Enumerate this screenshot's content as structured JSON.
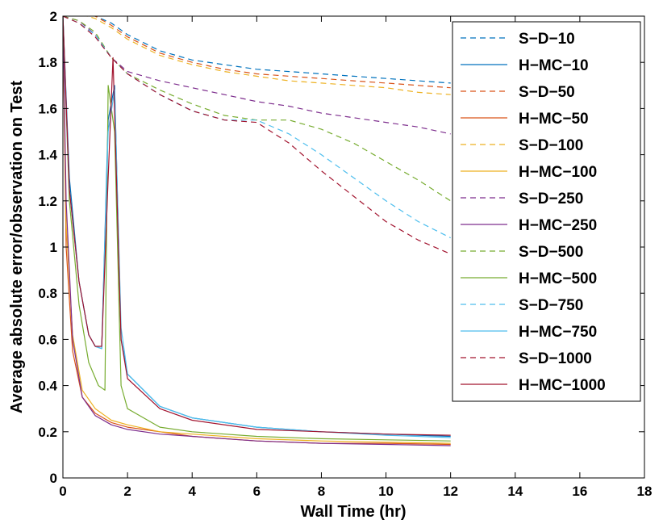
{
  "chart_data": {
    "type": "line",
    "title": "",
    "xlabel": "Wall Time (hr)",
    "ylabel": "Average absolute error/observation on Test",
    "xlim": [
      0,
      18
    ],
    "ylim": [
      0,
      2
    ],
    "xticks": [
      0,
      2,
      4,
      6,
      8,
      10,
      12,
      14,
      16,
      18
    ],
    "yticks": [
      0,
      0.2,
      0.4,
      0.6,
      0.8,
      1,
      1.2,
      1.4,
      1.6,
      1.8,
      2
    ],
    "xtick_labels": [
      "0",
      "2",
      "4",
      "6",
      "8",
      "10",
      "12",
      "14",
      "16",
      "18"
    ],
    "ytick_labels": [
      "0",
      "0.2",
      "0.4",
      "0.6",
      "0.8",
      "1",
      "1.2",
      "1.4",
      "1.6",
      "1.8",
      "2"
    ],
    "grid": false,
    "legend_position": "top-right",
    "series": [
      {
        "name": "S−D−10",
        "style": "dashed",
        "color": "#0072bd",
        "x": [
          0,
          0.5,
          1,
          1.5,
          2,
          3,
          4,
          5,
          6,
          7,
          8,
          9,
          10,
          11,
          12
        ],
        "y": [
          2.01,
          2.01,
          2.0,
          1.97,
          1.92,
          1.85,
          1.81,
          1.79,
          1.77,
          1.76,
          1.75,
          1.74,
          1.73,
          1.72,
          1.71
        ]
      },
      {
        "name": "H−MC−10",
        "style": "solid",
        "color": "#0072bd",
        "x": [
          0,
          0.2,
          0.5,
          0.8,
          1,
          1.2,
          1.4,
          1.6,
          1.8,
          2,
          3,
          4,
          6,
          8,
          10,
          12
        ],
        "y": [
          2.0,
          1.3,
          0.85,
          0.62,
          0.57,
          0.56,
          1.55,
          1.7,
          0.6,
          0.45,
          0.31,
          0.26,
          0.22,
          0.2,
          0.19,
          0.18
        ]
      },
      {
        "name": "S−D−50",
        "style": "dashed",
        "color": "#d95319",
        "x": [
          0,
          0.5,
          1,
          1.5,
          2,
          3,
          4,
          5,
          6,
          7,
          8,
          9,
          10,
          11,
          12
        ],
        "y": [
          2.01,
          2.01,
          2.0,
          1.96,
          1.91,
          1.84,
          1.8,
          1.77,
          1.75,
          1.74,
          1.73,
          1.72,
          1.71,
          1.7,
          1.69
        ]
      },
      {
        "name": "H−MC−50",
        "style": "solid",
        "color": "#d95319",
        "x": [
          0,
          0.1,
          0.3,
          0.6,
          1,
          1.5,
          2,
          3,
          4,
          6,
          8,
          10,
          12
        ],
        "y": [
          2.0,
          1.0,
          0.55,
          0.35,
          0.28,
          0.24,
          0.22,
          0.2,
          0.18,
          0.16,
          0.15,
          0.15,
          0.145
        ]
      },
      {
        "name": "S−D−100",
        "style": "dashed",
        "color": "#edb120",
        "x": [
          0,
          0.5,
          1,
          1.5,
          2,
          3,
          4,
          5,
          6,
          7,
          8,
          9,
          10,
          11,
          12
        ],
        "y": [
          2.01,
          2.01,
          1.99,
          1.95,
          1.9,
          1.83,
          1.79,
          1.76,
          1.74,
          1.72,
          1.71,
          1.7,
          1.69,
          1.67,
          1.66
        ]
      },
      {
        "name": "H−MC−100",
        "style": "solid",
        "color": "#edb120",
        "x": [
          0,
          0.1,
          0.3,
          0.6,
          1,
          1.5,
          2,
          3,
          4,
          6,
          8,
          10,
          12
        ],
        "y": [
          2.0,
          1.1,
          0.62,
          0.38,
          0.3,
          0.25,
          0.23,
          0.2,
          0.19,
          0.17,
          0.16,
          0.155,
          0.15
        ]
      },
      {
        "name": "S−D−250",
        "style": "dashed",
        "color": "#7e2f8e",
        "x": [
          0,
          0.5,
          1,
          1.5,
          2,
          3,
          4,
          5,
          6,
          7,
          8,
          9,
          10,
          11,
          12
        ],
        "y": [
          2.0,
          1.98,
          1.92,
          1.82,
          1.76,
          1.72,
          1.69,
          1.66,
          1.63,
          1.61,
          1.58,
          1.56,
          1.54,
          1.52,
          1.49
        ]
      },
      {
        "name": "H−MC−250",
        "style": "solid",
        "color": "#7e2f8e",
        "x": [
          0,
          0.1,
          0.3,
          0.6,
          1,
          1.5,
          2,
          3,
          4,
          6,
          8,
          10,
          12
        ],
        "y": [
          2.0,
          1.2,
          0.6,
          0.35,
          0.27,
          0.23,
          0.21,
          0.19,
          0.18,
          0.16,
          0.15,
          0.145,
          0.14
        ]
      },
      {
        "name": "S−D−500",
        "style": "dashed",
        "color": "#77ac30",
        "x": [
          0,
          0.5,
          1,
          1.5,
          2,
          3,
          4,
          5,
          6,
          7,
          8,
          9,
          10,
          11,
          12
        ],
        "y": [
          2.0,
          1.98,
          1.93,
          1.82,
          1.75,
          1.68,
          1.62,
          1.57,
          1.55,
          1.55,
          1.51,
          1.45,
          1.37,
          1.29,
          1.2
        ]
      },
      {
        "name": "H−MC−500",
        "style": "solid",
        "color": "#77ac30",
        "x": [
          0,
          0.2,
          0.5,
          0.8,
          1.1,
          1.3,
          1.4,
          1.6,
          1.8,
          2,
          3,
          4,
          6,
          8,
          10,
          12
        ],
        "y": [
          2.0,
          1.2,
          0.75,
          0.5,
          0.4,
          0.38,
          1.7,
          1.5,
          0.4,
          0.3,
          0.22,
          0.2,
          0.18,
          0.17,
          0.165,
          0.16
        ]
      },
      {
        "name": "S−D−750",
        "style": "dashed",
        "color": "#4dbeee",
        "x": [
          0,
          0.5,
          1,
          1.5,
          2,
          3,
          4,
          5,
          6,
          7,
          8,
          9,
          10,
          11,
          12
        ],
        "y": [
          2.0,
          1.97,
          1.92,
          1.82,
          1.75,
          1.66,
          1.59,
          1.55,
          1.55,
          1.49,
          1.4,
          1.3,
          1.2,
          1.11,
          1.04
        ]
      },
      {
        "name": "H−MC−750",
        "style": "solid",
        "color": "#4dbeee",
        "x": [
          0,
          0.2,
          0.5,
          0.8,
          1,
          1.2,
          1.4,
          1.6,
          1.8,
          2,
          3,
          4,
          6,
          8,
          10,
          12
        ],
        "y": [
          2.0,
          1.25,
          0.85,
          0.62,
          0.57,
          0.56,
          1.5,
          1.68,
          0.65,
          0.45,
          0.31,
          0.26,
          0.22,
          0.2,
          0.185,
          0.175
        ]
      },
      {
        "name": "S−D−1000",
        "style": "dashed",
        "color": "#a2142f",
        "x": [
          0,
          0.5,
          1,
          1.5,
          2,
          3,
          4,
          5,
          6,
          7,
          8,
          9,
          10,
          11,
          12
        ],
        "y": [
          2.0,
          1.97,
          1.91,
          1.82,
          1.75,
          1.66,
          1.59,
          1.55,
          1.54,
          1.45,
          1.33,
          1.22,
          1.11,
          1.03,
          0.97
        ]
      },
      {
        "name": "H−MC−1000",
        "style": "solid",
        "color": "#a2142f",
        "x": [
          0,
          0.2,
          0.5,
          0.8,
          1,
          1.2,
          1.4,
          1.55,
          1.8,
          2,
          3,
          4,
          6,
          8,
          10,
          12
        ],
        "y": [
          2.0,
          1.25,
          0.85,
          0.62,
          0.57,
          0.57,
          1.3,
          1.82,
          0.6,
          0.43,
          0.3,
          0.25,
          0.21,
          0.2,
          0.19,
          0.185
        ]
      }
    ]
  }
}
